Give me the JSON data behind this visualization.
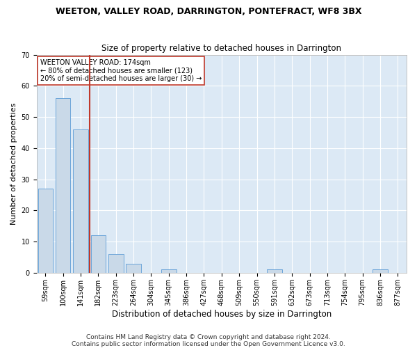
{
  "title": "WEETON, VALLEY ROAD, DARRINGTON, PONTEFRACT, WF8 3BX",
  "subtitle": "Size of property relative to detached houses in Darrington",
  "xlabel": "Distribution of detached houses by size in Darrington",
  "ylabel": "Number of detached properties",
  "categories": [
    "59sqm",
    "100sqm",
    "141sqm",
    "182sqm",
    "223sqm",
    "264sqm",
    "304sqm",
    "345sqm",
    "386sqm",
    "427sqm",
    "468sqm",
    "509sqm",
    "550sqm",
    "591sqm",
    "632sqm",
    "673sqm",
    "713sqm",
    "754sqm",
    "795sqm",
    "836sqm",
    "877sqm"
  ],
  "values": [
    27,
    56,
    46,
    12,
    6,
    3,
    0,
    1,
    0,
    0,
    0,
    0,
    0,
    1,
    0,
    0,
    0,
    0,
    0,
    1,
    0
  ],
  "bar_color": "#c9d9e8",
  "bar_edge_color": "#5b9bd5",
  "vline_color": "#c0392b",
  "annotation_line1": "WEETON VALLEY ROAD: 174sqm",
  "annotation_line2": "← 80% of detached houses are smaller (123)",
  "annotation_line3": "20% of semi-detached houses are larger (30) →",
  "annotation_box_color": "#ffffff",
  "annotation_box_edge_color": "#c0392b",
  "ylim": [
    0,
    70
  ],
  "yticks": [
    0,
    10,
    20,
    30,
    40,
    50,
    60,
    70
  ],
  "footer_line1": "Contains HM Land Registry data © Crown copyright and database right 2024.",
  "footer_line2": "Contains public sector information licensed under the Open Government Licence v3.0.",
  "plot_bg_color": "#dce9f5",
  "title_fontsize": 9,
  "subtitle_fontsize": 8.5,
  "xlabel_fontsize": 8.5,
  "ylabel_fontsize": 8,
  "tick_fontsize": 7,
  "footer_fontsize": 6.5
}
